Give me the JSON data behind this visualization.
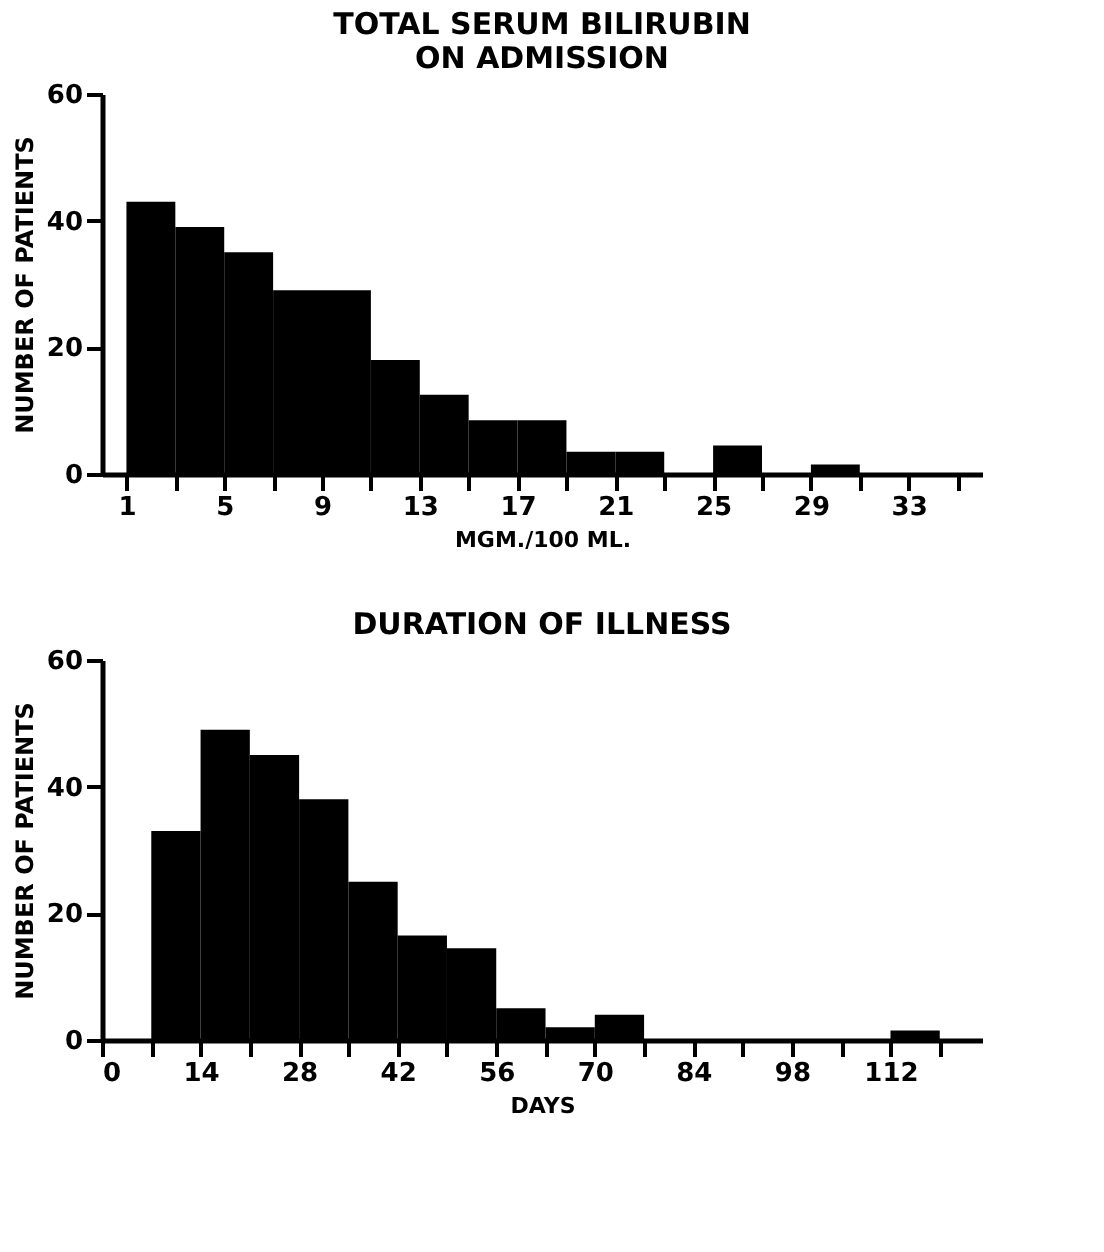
{
  "chart_data": [
    {
      "type": "histogram",
      "title": "TOTAL SERUM BILIRUBIN\nON ADMISSION",
      "xlabel": "MGM./100 ML.",
      "ylabel": "NUMBER OF PATIENTS",
      "bins": [
        1,
        3,
        5,
        7,
        9,
        11,
        13,
        15,
        17,
        19,
        21,
        23,
        25,
        27,
        29,
        31,
        33,
        35
      ],
      "values": [
        43,
        39,
        35,
        29,
        29,
        18,
        12.5,
        8.5,
        8.5,
        3.5,
        3.5,
        0,
        4.5,
        0,
        1.5,
        0,
        0
      ],
      "color": "#000000",
      "xlim": [
        0,
        36
      ],
      "ylim": [
        0,
        60
      ],
      "yticks": [
        0,
        20,
        40,
        60
      ],
      "xticks": [
        1,
        {
          "value": 3,
          "label": null
        },
        5,
        {
          "value": 7,
          "label": null
        },
        9,
        {
          "value": 11,
          "label": null
        },
        13,
        {
          "value": 15,
          "label": null
        },
        17,
        {
          "value": 19,
          "label": null
        },
        21,
        {
          "value": 23,
          "label": null
        },
        25,
        {
          "value": 27,
          "label": null
        },
        29,
        {
          "value": 31,
          "label": null
        },
        33,
        {
          "value": 35,
          "label": null
        }
      ],
      "grid": false
    },
    {
      "type": "histogram",
      "title": "DURATION OF ILLNESS",
      "xlabel": "DAYS",
      "ylabel": "NUMBER OF PATIENTS",
      "bins": [
        7,
        14,
        21,
        28,
        35,
        42,
        49,
        56,
        63,
        70,
        77,
        84,
        91,
        98,
        105,
        112,
        119
      ],
      "values": [
        33,
        49,
        45,
        38,
        25,
        16.5,
        14.5,
        5,
        2,
        4,
        0,
        0,
        0,
        0,
        0,
        1.5
      ],
      "color": "#000000",
      "xlim": [
        0,
        125
      ],
      "ylim": [
        0,
        60
      ],
      "yticks": [
        0,
        20,
        40,
        60
      ],
      "xticks": [
        0,
        {
          "value": 7,
          "label": null
        },
        14,
        {
          "value": 21,
          "label": null
        },
        28,
        {
          "value": 35,
          "label": null
        },
        42,
        {
          "value": 49,
          "label": null
        },
        56,
        {
          "value": 63,
          "label": null
        },
        70,
        {
          "value": 77,
          "label": null
        },
        84,
        {
          "value": 91,
          "label": null
        },
        98,
        {
          "value": 105,
          "label": null
        },
        112,
        {
          "value": 119,
          "label": null
        }
      ],
      "grid": false
    }
  ]
}
